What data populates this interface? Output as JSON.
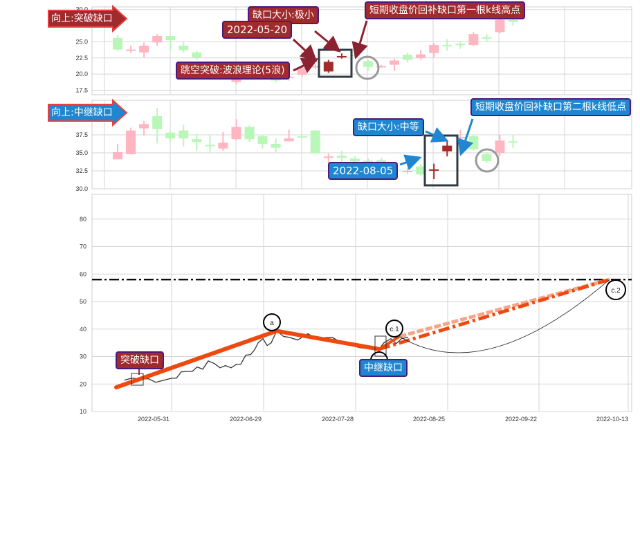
{
  "colors": {
    "up": "#ffb6c1",
    "down": "#b9f7b9",
    "highlight": "#a52a2a",
    "red_label": "#a02b2d",
    "blue_label": "#1f87d1",
    "wave": "#ee4a10",
    "wave_light": "#f4a58a",
    "price": "#333333"
  },
  "chart_data": [
    {
      "type": "candlestick",
      "title": "向上:突破缺口",
      "ylim": [
        16.8,
        30.4
      ],
      "yticks": [
        "17.5",
        "20.0",
        "22.5",
        "25.0",
        "30.0"
      ],
      "ytick_values": [
        17.5,
        20.0,
        22.5,
        25.0,
        30.0
      ],
      "grid": true,
      "candles": [
        {
          "i": 0,
          "o": 25.6,
          "c": 23.8,
          "h": 26.0,
          "l": 23.6,
          "k": "g"
        },
        {
          "i": 1,
          "o": 23.8,
          "c": 23.8,
          "h": 24.4,
          "l": 23.25,
          "k": "p"
        },
        {
          "i": 2,
          "o": 23.35,
          "c": 24.4,
          "h": 24.9,
          "l": 22.6,
          "k": "p"
        },
        {
          "i": 3,
          "o": 24.9,
          "c": 25.9,
          "h": 26.2,
          "l": 24.4,
          "k": "p"
        },
        {
          "i": 4,
          "o": 25.9,
          "c": 25.25,
          "h": 26.0,
          "l": 23.6,
          "k": "g"
        },
        {
          "i": 5,
          "o": 24.4,
          "c": 23.7,
          "h": 24.9,
          "l": 23.35,
          "k": "g"
        },
        {
          "i": 6,
          "o": 23.35,
          "c": 22.5,
          "h": 23.6,
          "l": 22.2,
          "k": "g"
        },
        {
          "i": 9,
          "o": 18.8,
          "c": 19.55,
          "h": 19.8,
          "l": 18.4,
          "k": "p"
        },
        {
          "i": 11,
          "o": 19.75,
          "c": 19.45,
          "h": 19.9,
          "l": 19.3,
          "k": "g"
        },
        {
          "i": 12,
          "o": 19.55,
          "c": 19.0,
          "h": 19.9,
          "l": 18.7,
          "k": "g"
        },
        {
          "i": 13,
          "o": 19.6,
          "c": 19.6,
          "h": 20.0,
          "l": 19.0,
          "k": "p"
        },
        {
          "i": 14,
          "o": 19.9,
          "c": 21.0,
          "h": 21.2,
          "l": 19.6,
          "k": "p"
        },
        {
          "i": 15,
          "o": 21.2,
          "c": 21.25,
          "h": 21.6,
          "l": 20.8,
          "k": "p"
        },
        {
          "i": 16,
          "o": 20.4,
          "c": 21.9,
          "h": 22.2,
          "l": 20.2,
          "k": "r"
        },
        {
          "i": 17,
          "o": 22.8,
          "c": 22.8,
          "h": 23.2,
          "l": 22.4,
          "k": "r"
        },
        {
          "i": 18,
          "o": 23.0,
          "c": 23.0,
          "h": 23.3,
          "l": 22.6,
          "k": "g"
        },
        {
          "i": 19,
          "o": 22.0,
          "c": 21.1,
          "h": 22.2,
          "l": 20.5,
          "k": "g"
        },
        {
          "i": 20,
          "o": 21.2,
          "c": 21.25,
          "h": 21.45,
          "l": 21.0,
          "k": "p"
        },
        {
          "i": 21,
          "o": 21.45,
          "c": 22.1,
          "h": 22.4,
          "l": 20.5,
          "k": "p"
        },
        {
          "i": 22,
          "o": 23.0,
          "c": 22.2,
          "h": 23.3,
          "l": 21.8,
          "k": "g"
        },
        {
          "i": 23,
          "o": 22.5,
          "c": 23.05,
          "h": 23.7,
          "l": 22.2,
          "k": "p"
        },
        {
          "i": 24,
          "o": 23.25,
          "c": 24.5,
          "h": 24.8,
          "l": 22.6,
          "k": "p"
        },
        {
          "i": 25,
          "o": 24.5,
          "c": 24.5,
          "h": 25.4,
          "l": 23.6,
          "k": "g"
        },
        {
          "i": 26,
          "o": 24.7,
          "c": 24.65,
          "h": 25.0,
          "l": 23.9,
          "k": "g"
        },
        {
          "i": 27,
          "o": 24.5,
          "c": 26.2,
          "h": 26.5,
          "l": 24.4,
          "k": "p"
        },
        {
          "i": 28,
          "o": 25.7,
          "c": 25.7,
          "h": 26.2,
          "l": 25.0,
          "k": "g"
        },
        {
          "i": 29,
          "o": 26.5,
          "c": 28.4,
          "h": 28.6,
          "l": 26.3,
          "k": "p"
        },
        {
          "i": 30,
          "o": 28.4,
          "c": 28.1,
          "h": 28.6,
          "l": 27.5,
          "k": "g"
        }
      ],
      "annotations": {
        "gap_size": "缺口大小:极小",
        "gap_date": "2022-05-20",
        "breakout": "跳空突破:波浪理论(5浪)",
        "refill": "短期收盘价回补缺口第一根k线高点"
      }
    },
    {
      "type": "candlestick",
      "title": "向上:中继缺口",
      "ylim": [
        30.0,
        42.3
      ],
      "yticks": [
        "30.0",
        "32.5",
        "35.0",
        "37.5"
      ],
      "ytick_values": [
        30.0,
        32.5,
        35.0,
        37.5
      ],
      "grid": true,
      "candles": [
        {
          "i": 0,
          "o": 34.1,
          "c": 35.1,
          "h": 36.25,
          "l": 34.1,
          "k": "p"
        },
        {
          "i": 1,
          "o": 34.8,
          "c": 38.1,
          "h": 38.5,
          "l": 34.8,
          "k": "p"
        },
        {
          "i": 2,
          "o": 38.4,
          "c": 39.0,
          "h": 39.4,
          "l": 37.4,
          "k": "p"
        },
        {
          "i": 3,
          "o": 40.1,
          "c": 38.3,
          "h": 41.25,
          "l": 36.3,
          "k": "g"
        },
        {
          "i": 4,
          "o": 37.8,
          "c": 37.0,
          "h": 38.0,
          "l": 36.5,
          "k": "g"
        },
        {
          "i": 5,
          "o": 38.1,
          "c": 37.0,
          "h": 38.9,
          "l": 35.9,
          "k": "g"
        },
        {
          "i": 6,
          "o": 36.9,
          "c": 36.5,
          "h": 37.6,
          "l": 35.3,
          "k": "g"
        },
        {
          "i": 7,
          "o": 36.1,
          "c": 36.1,
          "h": 37.5,
          "l": 34.9,
          "k": "g"
        },
        {
          "i": 8,
          "o": 35.6,
          "c": 36.4,
          "h": 37.9,
          "l": 35.3,
          "k": "p"
        },
        {
          "i": 9,
          "o": 36.9,
          "c": 38.6,
          "h": 39.7,
          "l": 36.7,
          "k": "p"
        },
        {
          "i": 10,
          "o": 38.6,
          "c": 36.9,
          "h": 38.8,
          "l": 36.5,
          "k": "g"
        },
        {
          "i": 11,
          "o": 37.3,
          "c": 36.25,
          "h": 37.5,
          "l": 35.6,
          "k": "g"
        },
        {
          "i": 12,
          "o": 36.25,
          "c": 35.7,
          "h": 37.0,
          "l": 35.1,
          "k": "g"
        },
        {
          "i": 13,
          "o": 36.6,
          "c": 37.0,
          "h": 38.2,
          "l": 36.6,
          "k": "p"
        },
        {
          "i": 14,
          "o": 37.3,
          "c": 37.3,
          "h": 37.5,
          "l": 37.0,
          "k": "g"
        },
        {
          "i": 15,
          "o": 38.1,
          "c": 34.9,
          "h": 38.1,
          "l": 34.9,
          "k": "g"
        },
        {
          "i": 16,
          "o": 34.5,
          "c": 34.5,
          "h": 34.9,
          "l": 33.6,
          "k": "p"
        },
        {
          "i": 17,
          "o": 34.6,
          "c": 34.3,
          "h": 35.3,
          "l": 33.7,
          "k": "g"
        },
        {
          "i": 18,
          "o": 34.2,
          "c": 33.8,
          "h": 34.5,
          "l": 33.6,
          "k": "g"
        },
        {
          "i": 19,
          "o": 33.9,
          "c": 33.9,
          "h": 34.2,
          "l": 33.6,
          "k": "g"
        },
        {
          "i": 20,
          "o": 34.0,
          "c": 33.75,
          "h": 34.3,
          "l": 33.6,
          "k": "g"
        },
        {
          "i": 22,
          "o": 32.5,
          "c": 32.5,
          "h": 32.9,
          "l": 32.1,
          "k": "p"
        },
        {
          "i": 23,
          "o": 33.1,
          "c": 32.0,
          "h": 33.4,
          "l": 31.8,
          "k": "g"
        },
        {
          "i": 24,
          "o": 32.7,
          "c": 32.7,
          "h": 33.5,
          "l": 31.35,
          "k": "r"
        },
        {
          "i": 25,
          "o": 35.2,
          "c": 36.0,
          "h": 36.6,
          "l": 34.5,
          "k": "r"
        },
        {
          "i": 26,
          "o": 37.2,
          "c": 37.2,
          "h": 38.2,
          "l": 36.1,
          "k": "p"
        },
        {
          "i": 27,
          "o": 37.3,
          "c": 35.5,
          "h": 37.5,
          "l": 35.3,
          "k": "g"
        },
        {
          "i": 28,
          "o": 34.8,
          "c": 33.85,
          "h": 35.1,
          "l": 33.6,
          "k": "g"
        },
        {
          "i": 29,
          "o": 35.0,
          "c": 36.7,
          "h": 37.5,
          "l": 34.6,
          "k": "p"
        },
        {
          "i": 30,
          "o": 36.6,
          "c": 36.6,
          "h": 37.5,
          "l": 35.7,
          "k": "g"
        }
      ],
      "annotations": {
        "gap_size": "缺口大小:中等",
        "gap_date": "2022-08-05",
        "refill": "短期收盘价回补缺口第二根k线低点"
      }
    },
    {
      "type": "line",
      "ylim": [
        10,
        89
      ],
      "yticks": [
        "10",
        "20",
        "30",
        "40",
        "50",
        "60",
        "70",
        "80"
      ],
      "ytick_values": [
        10,
        20,
        30,
        40,
        50,
        60,
        70,
        80
      ],
      "xticks": [
        "2022-05-31",
        "2022-06-29",
        "2022-07-28",
        "2022-08-25",
        "2022-09-22",
        "2022-10-13"
      ],
      "grid": true,
      "target_level": 58,
      "price": {
        "x": [
          2.6,
          4.8,
          7,
          10.2,
          12.4,
          15.7,
          17.4,
          18.9,
          20.4,
          22.2,
          23.9,
          25.4,
          27.2,
          28.9,
          30.9,
          32.6,
          34.3,
          36.1,
          37.8,
          39.1,
          40.7,
          42.2,
          43.5,
          44.6,
          46.1,
          47.4,
          48.7,
          50.4,
          52.6,
          54.3,
          57,
          60.2,
          62.4,
          64.6,
          67.8,
          68.9,
          71.7,
          76.5,
          80,
          82.6,
          84.1,
          86.3,
          88,
          89.6,
          91.7
        ],
        "y": [
          21.4,
          22.1,
          21.9,
          21.9,
          20.6,
          21.6,
          22.1,
          22.1,
          24.4,
          24.6,
          24.6,
          26.2,
          25.4,
          28.4,
          27.4,
          25.9,
          26.7,
          25.9,
          27.2,
          27.2,
          30.5,
          30.7,
          32.5,
          35.0,
          36.5,
          34.0,
          35.0,
          39.3,
          37.3,
          37.0,
          36.0,
          38.3,
          36.8,
          36.8,
          37.0,
          36.3,
          34.7,
          33.2,
          32.7,
          32.7,
          35.0,
          36.5,
          34.7,
          36.5,
          37.0
        ]
      },
      "wave": [
        {
          "label": "",
          "x": 0,
          "y": 18.8
        },
        {
          "label": "a",
          "x": 50.4,
          "y": 39.3
        },
        {
          "label": "b",
          "x": 82.6,
          "y": 32.7
        },
        {
          "label": "c.1",
          "x": 89,
          "y": 37.3
        }
      ],
      "projection": {
        "label": "c.2",
        "x": 155,
        "y": 58.0
      },
      "annotations": {
        "breakout": "突破缺口",
        "continuation": "中继缺口"
      }
    }
  ]
}
